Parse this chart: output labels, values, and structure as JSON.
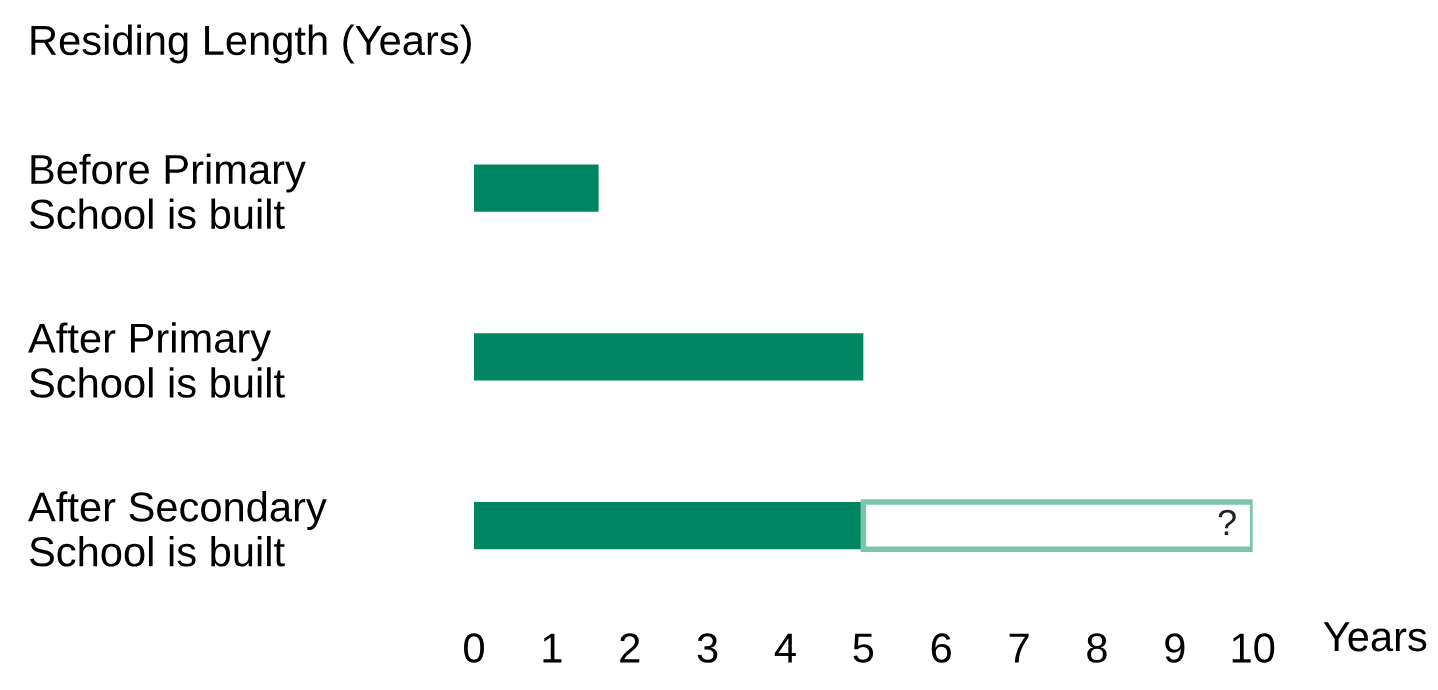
{
  "chart_data": {
    "type": "bar",
    "orientation": "horizontal",
    "stacked": true,
    "title": "Residing Length (Years)",
    "xlabel": "Years",
    "categories": [
      "Before Primary\nSchool is built",
      "After Primary\nSchool is built",
      "After Secondary\nSchool is built"
    ],
    "series": [
      {
        "color": "#008562",
        "values": [
          1.6,
          5,
          5
        ]
      },
      {
        "color": "#7cc5ad",
        "values": [
          null,
          null,
          5
        ],
        "value_labels": [
          null,
          null,
          "?"
        ]
      }
    ],
    "xlim": [
      0,
      10
    ],
    "xticks": [
      0,
      1,
      2,
      3,
      4,
      5,
      6,
      7,
      8,
      9,
      10
    ],
    "grid": false,
    "legend": false
  }
}
